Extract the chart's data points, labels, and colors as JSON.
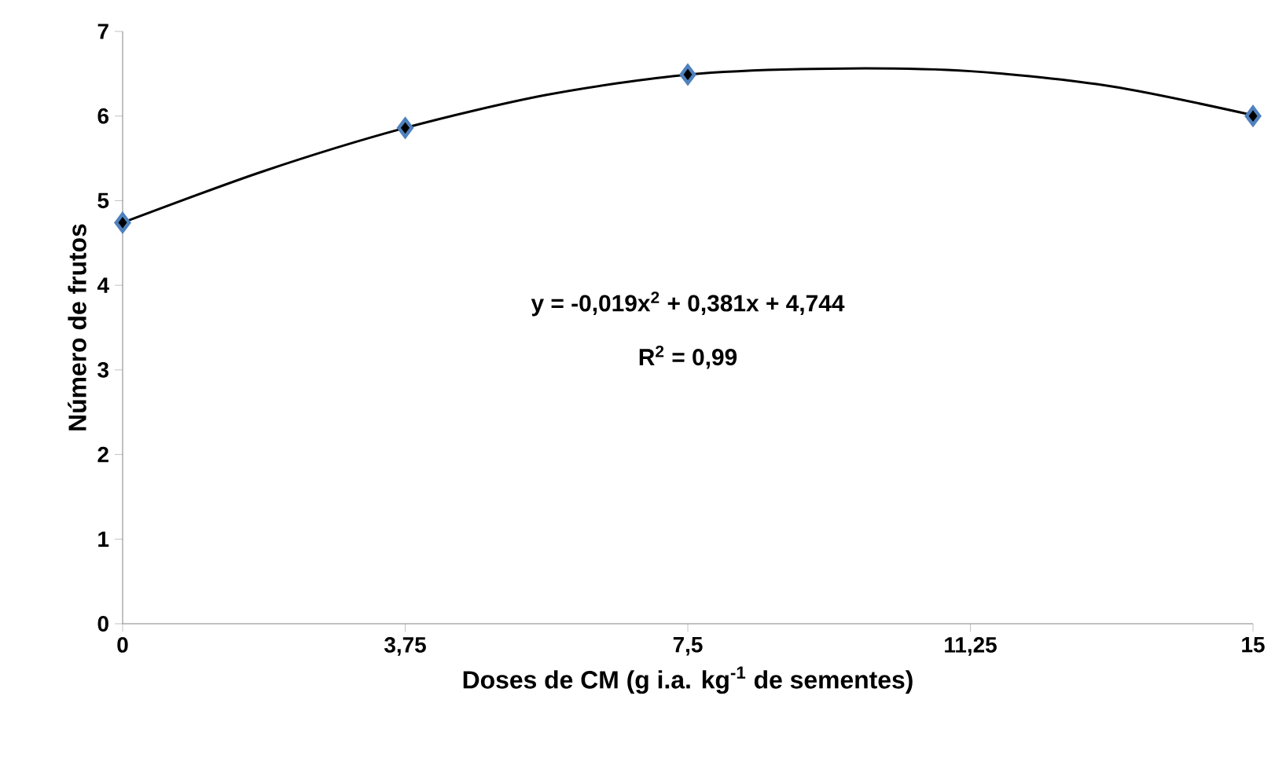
{
  "chart_data": {
    "type": "scatter",
    "xlabel": "Doses de CM (g i.a. kg$^{-1}$ de sementes)",
    "ylabel": "Número de frutos",
    "xlim": [
      0,
      15
    ],
    "ylim": [
      0,
      7
    ],
    "xticks": [
      0,
      {
        "value": 3.75,
        "label": "3,75"
      },
      {
        "value": 7.5,
        "label": "7,5"
      },
      {
        "value": 11.25,
        "label": "11,25"
      },
      15
    ],
    "yticks": [
      0,
      1,
      2,
      3,
      4,
      5,
      6,
      7
    ],
    "series": [
      {
        "marker": "diamond",
        "color": "#4f81bd",
        "x": [
          0,
          3.75,
          7.5,
          15
        ],
        "values": [
          4.74,
          5.86,
          6.49,
          6.0
        ]
      },
      {
        "type": "line",
        "marker": "none",
        "color": "#000000",
        "x": [
          0,
          1.875,
          3.75,
          5.625,
          7.5,
          9.375,
          11.25,
          13.125,
          15
        ],
        "values": [
          4.74,
          5.35,
          5.86,
          6.25,
          6.49,
          6.56,
          6.53,
          6.35,
          6.01
        ]
      }
    ],
    "annotations": [
      "y = -0,019x$^{2}$ + 0,381x + 4,744",
      "R$^{2}$ = 0,99"
    ]
  }
}
